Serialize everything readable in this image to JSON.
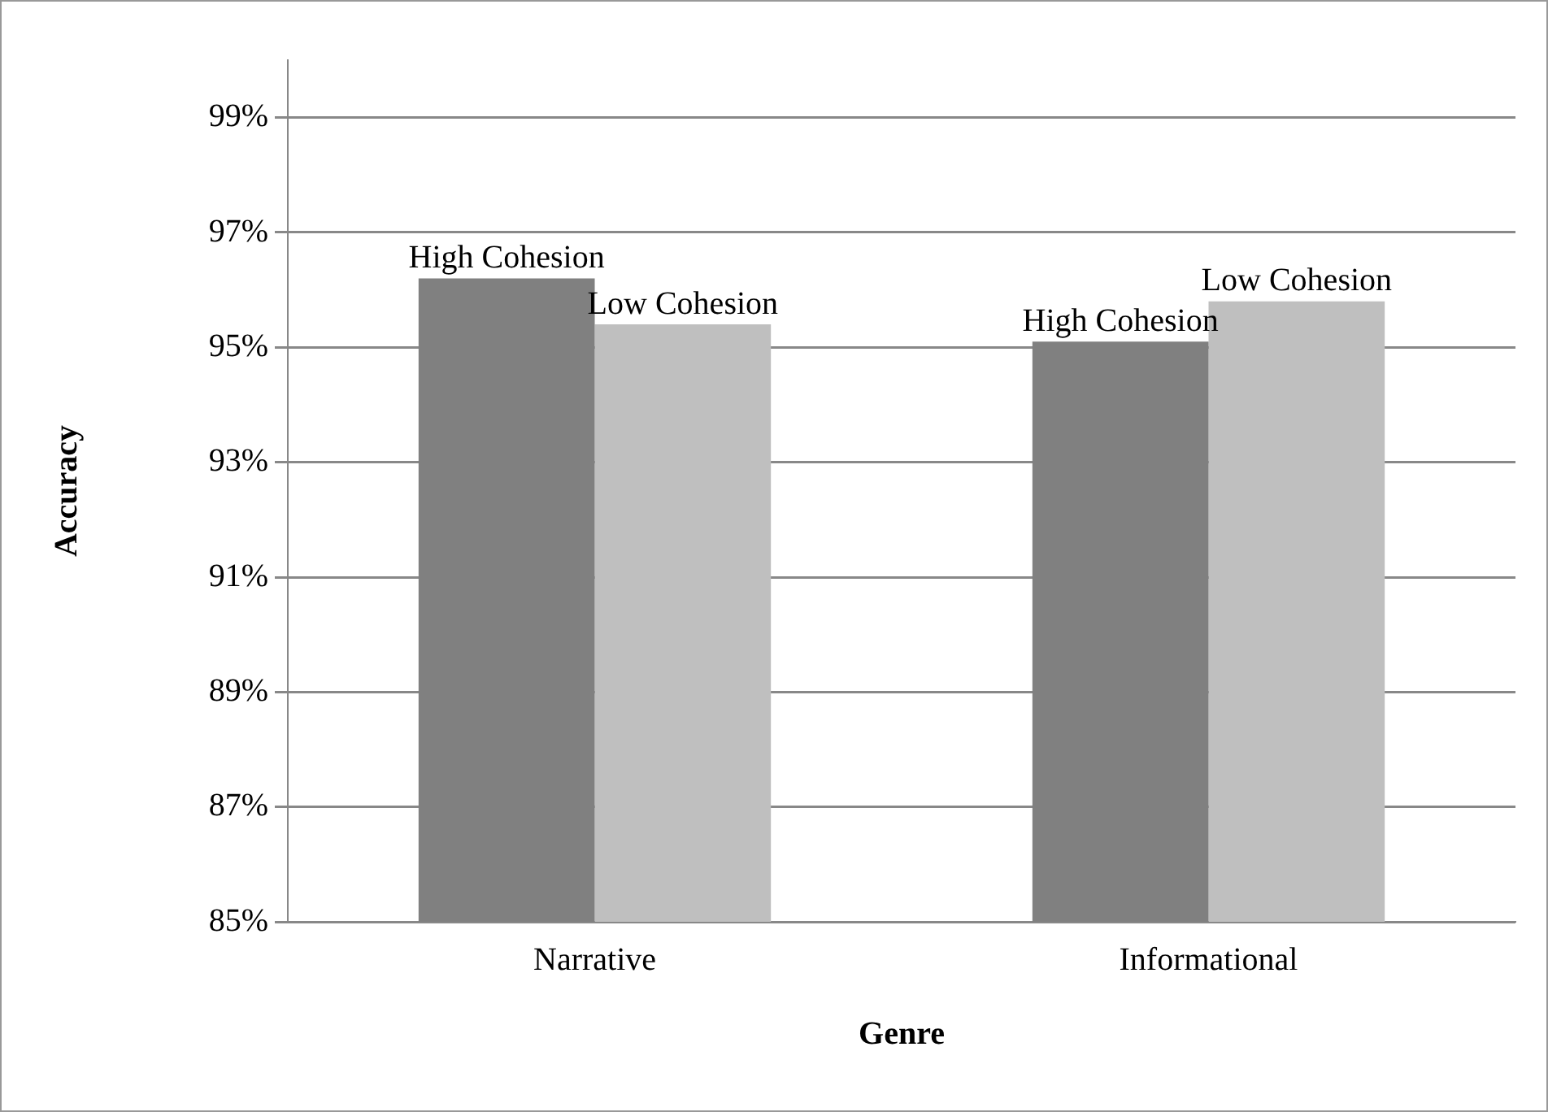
{
  "chart_data": {
    "type": "bar",
    "xlabel": "Genre",
    "ylabel": "Accuracy",
    "categories": [
      "Narrative",
      "Informational"
    ],
    "series": [
      {
        "name": "High Cohesion",
        "color": "#808080",
        "values": [
          96.2,
          95.1
        ]
      },
      {
        "name": "Low Cohesion",
        "color": "#bfbfbf",
        "values": [
          95.4,
          95.8
        ]
      }
    ],
    "ylim": [
      85,
      100
    ],
    "yticks": [
      {
        "value": 85,
        "label": "85%"
      },
      {
        "value": 87,
        "label": "87%"
      },
      {
        "value": 89,
        "label": "89%"
      },
      {
        "value": 91,
        "label": "91%"
      },
      {
        "value": 93,
        "label": "93%"
      },
      {
        "value": 95,
        "label": "95%"
      },
      {
        "value": 97,
        "label": "97%"
      },
      {
        "value": 99,
        "label": "99%"
      }
    ],
    "grid": "y",
    "legend": false
  }
}
